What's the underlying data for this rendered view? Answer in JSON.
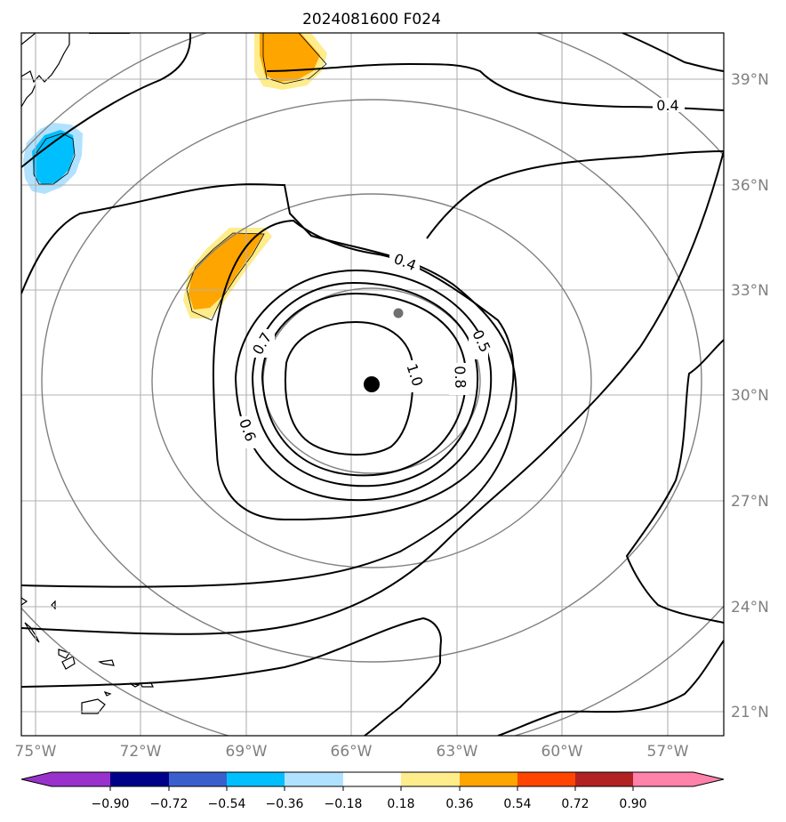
{
  "title": "2024081600 F024",
  "map": {
    "longitude_ticks": [
      "75°W",
      "72°W",
      "69°W",
      "66°W",
      "63°W",
      "60°W",
      "57°W"
    ],
    "latitude_ticks": [
      "39°N",
      "36°N",
      "33°N",
      "30°N",
      "27°N",
      "24°N",
      "21°N"
    ],
    "contour_labels": [
      "0.4",
      "0.4",
      "0.5",
      "0.6",
      "0.7",
      "0.8",
      "1.0"
    ],
    "storm_center": {
      "lon": -65.5,
      "lat": 30.3
    },
    "secondary_marker": {
      "lon": -64.7,
      "lat": 32.4
    },
    "contour_color": "#000000",
    "range_ring_color": "#808080",
    "grid_color": "#b0b0b0"
  },
  "colorbar": {
    "tick_labels": [
      "−0.90",
      "−0.72",
      "−0.54",
      "−0.36",
      "−0.18",
      "0.18",
      "0.36",
      "0.54",
      "0.72",
      "0.90"
    ],
    "colors": [
      "#9932cc",
      "#00008b",
      "#3a5fcd",
      "#00bfff",
      "#b0e2ff",
      "#ffffff",
      "#ffec8b",
      "#ffa500",
      "#ff4500",
      "#b22222",
      "#ff82ab"
    ]
  }
}
